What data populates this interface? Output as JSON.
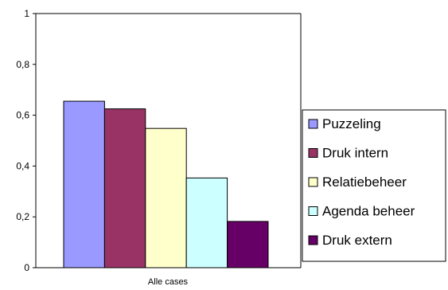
{
  "chart_data": {
    "type": "bar",
    "categories": [
      "Alle cases"
    ],
    "series": [
      {
        "name": "Puzzeling",
        "values": [
          0.655
        ],
        "color": "#9999ff"
      },
      {
        "name": "Druk intern",
        "values": [
          0.625
        ],
        "color": "#993366"
      },
      {
        "name": "Relatiebeheer",
        "values": [
          0.548
        ],
        "color": "#ffffcc"
      },
      {
        "name": "Agenda beheer",
        "values": [
          0.353
        ],
        "color": "#ccffff"
      },
      {
        "name": "Druk extern",
        "values": [
          0.182
        ],
        "color": "#660066"
      }
    ],
    "yticks": [
      "0",
      "0,2",
      "0,4",
      "0,6",
      "0,8",
      "1"
    ],
    "ylim": [
      0,
      1
    ],
    "grid": false,
    "legend": "right"
  }
}
